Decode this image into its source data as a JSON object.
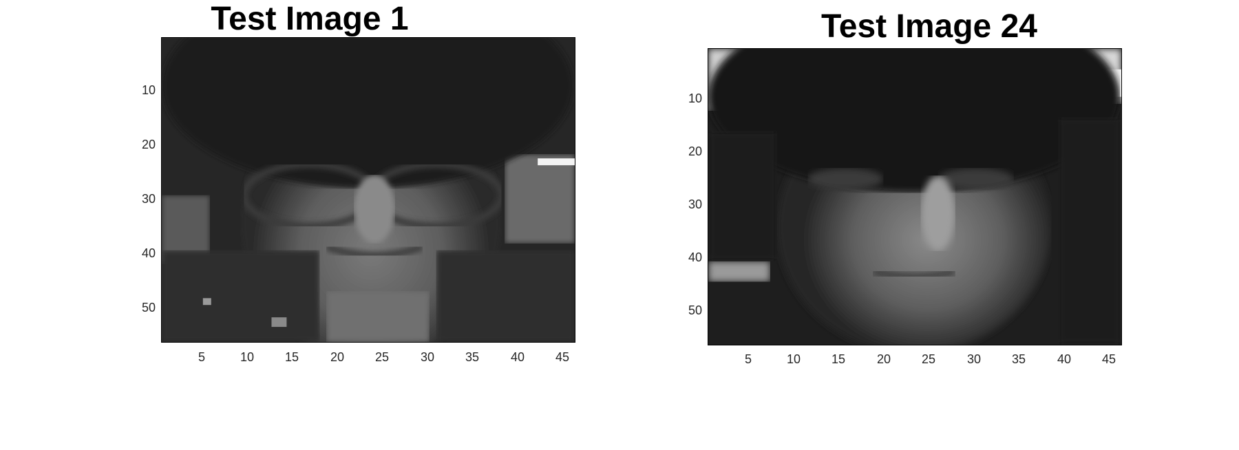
{
  "figures": [
    {
      "title": "Test Image 1",
      "x_ticks": [
        "5",
        "10",
        "15",
        "20",
        "25",
        "30",
        "35",
        "40",
        "45"
      ],
      "y_ticks": [
        "10",
        "20",
        "30",
        "40",
        "50"
      ],
      "colormap": "gray"
    },
    {
      "title": "Test Image 24",
      "x_ticks": [
        "5",
        "10",
        "15",
        "20",
        "25",
        "30",
        "35",
        "40",
        "45"
      ],
      "y_ticks": [
        "10",
        "20",
        "30",
        "40",
        "50"
      ],
      "colormap": "gray"
    }
  ]
}
